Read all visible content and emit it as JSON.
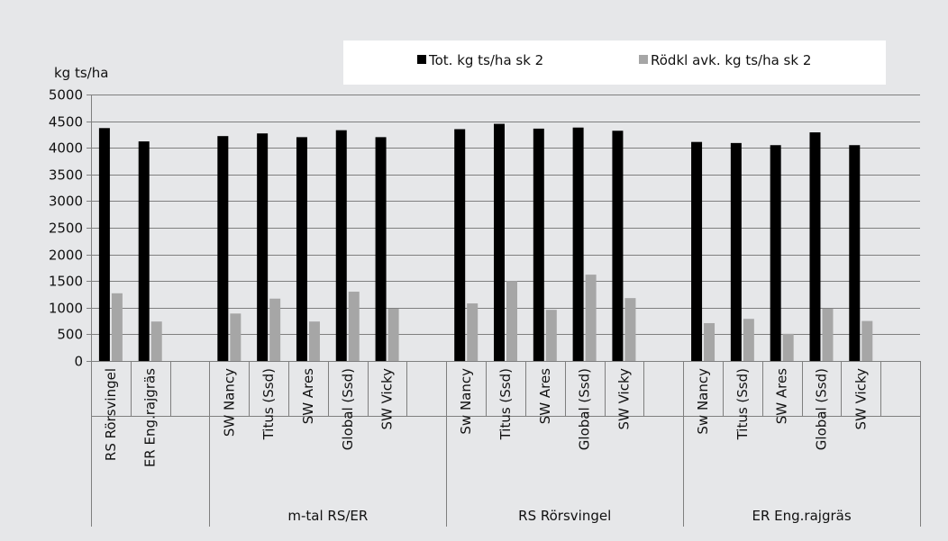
{
  "chart_data": {
    "type": "bar",
    "ylabel": "kg ts/ha",
    "ylim": [
      0,
      5000
    ],
    "yticks": [
      0,
      500,
      1000,
      1500,
      2000,
      2500,
      3000,
      3500,
      4000,
      4500,
      5000
    ],
    "grid": true,
    "legend_position": "top-right",
    "categories": [
      "RS Rörsvingel",
      "ER Eng.rajgräs",
      "",
      "SW Nancy",
      "Titus (Ssd)",
      "SW Ares",
      "Global (Ssd)",
      "SW Vicky",
      "",
      "Sw Nancy",
      "Titus (Ssd)",
      "SW Ares",
      "Global (Ssd)",
      "SW Vicky",
      "",
      "Sw Nancy",
      "Titus (Ssd)",
      "SW Ares",
      "Global (Ssd)",
      "SW Vicky",
      ""
    ],
    "groups": [
      {
        "label": "",
        "span": 3
      },
      {
        "label": "m-tal  RS/ER",
        "span": 6
      },
      {
        "label": "RS Rörsvingel",
        "span": 6
      },
      {
        "label": "ER Eng.rajgräs",
        "span": 6
      }
    ],
    "series": [
      {
        "name": "Tot. kg ts/ha sk 2",
        "color": "#000000",
        "values": [
          4370,
          4120,
          null,
          4220,
          4270,
          4200,
          4330,
          4200,
          null,
          4350,
          4450,
          4360,
          4380,
          4320,
          null,
          4110,
          4090,
          4050,
          4290,
          4050,
          null
        ]
      },
      {
        "name": "Rödkl avk. kg ts/ha sk 2",
        "color": "#a6a6a6",
        "values": [
          1270,
          740,
          null,
          890,
          1170,
          740,
          1300,
          980,
          null,
          1080,
          1500,
          960,
          1620,
          1180,
          null,
          710,
          790,
          510,
          980,
          750,
          null
        ]
      }
    ]
  }
}
